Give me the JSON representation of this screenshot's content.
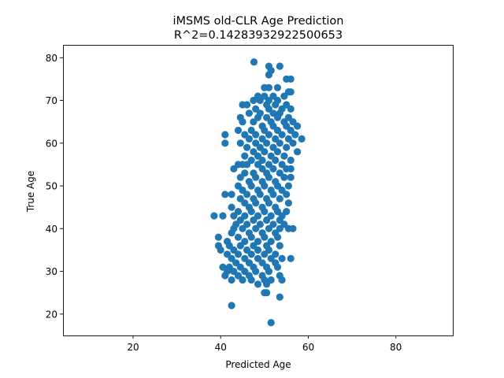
{
  "chart_data": {
    "type": "scatter",
    "title": "iMSMS old-CLR Age Prediction",
    "subtitle": "R^2=0.14283932922500653",
    "xlabel": "Predicted Age",
    "ylabel": "True Age",
    "xlim": [
      4,
      93
    ],
    "ylim": [
      15,
      83
    ],
    "xticks": [
      20,
      40,
      60,
      80
    ],
    "yticks": [
      20,
      30,
      40,
      50,
      60,
      70,
      80
    ],
    "grid": false,
    "marker_color": "#1f77b4",
    "points": [
      [
        47.6,
        79.0
      ],
      [
        51.0,
        78.0
      ],
      [
        53.5,
        78.0
      ],
      [
        51.5,
        77.0
      ],
      [
        51.0,
        76.0
      ],
      [
        55.0,
        75.0
      ],
      [
        56.0,
        75.0
      ],
      [
        50.0,
        73.0
      ],
      [
        51.0,
        73.0
      ],
      [
        53.0,
        73.0
      ],
      [
        55.5,
        72.0
      ],
      [
        56.0,
        72.0
      ],
      [
        48.5,
        71.0
      ],
      [
        50.0,
        71.0
      ],
      [
        52.0,
        71.0
      ],
      [
        54.5,
        71.0
      ],
      [
        49.0,
        70.0
      ],
      [
        51.0,
        70.0
      ],
      [
        53.0,
        70.0
      ],
      [
        47.5,
        70.0
      ],
      [
        45.0,
        69.0
      ],
      [
        46.0,
        69.0
      ],
      [
        50.5,
        69.0
      ],
      [
        52.5,
        69.0
      ],
      [
        55.0,
        69.0
      ],
      [
        48.0,
        68.0
      ],
      [
        51.0,
        68.0
      ],
      [
        54.0,
        68.0
      ],
      [
        56.0,
        68.0
      ],
      [
        49.0,
        67.0
      ],
      [
        52.0,
        67.0
      ],
      [
        53.5,
        67.0
      ],
      [
        46.5,
        67.0
      ],
      [
        55.5,
        66.0
      ],
      [
        44.5,
        66.0
      ],
      [
        48.5,
        66.0
      ],
      [
        50.5,
        66.0
      ],
      [
        53.0,
        66.0
      ],
      [
        45.0,
        65.0
      ],
      [
        47.5,
        65.0
      ],
      [
        51.5,
        65.0
      ],
      [
        54.5,
        65.0
      ],
      [
        56.5,
        65.0
      ],
      [
        49.5,
        64.0
      ],
      [
        52.0,
        64.0
      ],
      [
        55.0,
        64.0
      ],
      [
        57.5,
        64.0
      ],
      [
        44.0,
        63.0
      ],
      [
        47.0,
        63.0
      ],
      [
        50.0,
        63.0
      ],
      [
        53.0,
        63.0
      ],
      [
        56.0,
        63.0
      ],
      [
        45.5,
        62.0
      ],
      [
        48.0,
        62.0
      ],
      [
        51.0,
        62.0
      ],
      [
        54.0,
        62.0
      ],
      [
        41.0,
        62.0
      ],
      [
        57.0,
        62.0
      ],
      [
        46.5,
        61.0
      ],
      [
        49.5,
        61.0
      ],
      [
        52.5,
        61.0
      ],
      [
        55.5,
        61.0
      ],
      [
        58.5,
        61.0
      ],
      [
        41.0,
        60.0
      ],
      [
        44.5,
        60.0
      ],
      [
        48.0,
        60.0
      ],
      [
        50.5,
        60.0
      ],
      [
        53.5,
        60.0
      ],
      [
        56.5,
        60.0
      ],
      [
        46.0,
        59.0
      ],
      [
        49.0,
        59.0
      ],
      [
        52.0,
        59.0
      ],
      [
        55.0,
        59.0
      ],
      [
        47.5,
        58.0
      ],
      [
        50.0,
        58.0
      ],
      [
        53.0,
        58.0
      ],
      [
        57.5,
        58.0
      ],
      [
        45.5,
        57.0
      ],
      [
        48.5,
        57.0
      ],
      [
        51.5,
        57.0
      ],
      [
        54.5,
        57.0
      ],
      [
        47.0,
        56.0
      ],
      [
        49.5,
        56.0
      ],
      [
        52.5,
        56.0
      ],
      [
        56.0,
        56.0
      ],
      [
        46.0,
        55.0
      ],
      [
        48.5,
        55.0
      ],
      [
        51.0,
        55.0
      ],
      [
        54.0,
        55.0
      ],
      [
        44.0,
        55.0
      ],
      [
        45.0,
        55.0
      ],
      [
        49.5,
        54.0
      ],
      [
        52.0,
        54.0
      ],
      [
        55.0,
        54.0
      ],
      [
        56.0,
        54.0
      ],
      [
        43.0,
        54.0
      ],
      [
        47.5,
        53.0
      ],
      [
        50.5,
        53.0
      ],
      [
        53.5,
        53.0
      ],
      [
        45.5,
        53.0
      ],
      [
        44.5,
        52.0
      ],
      [
        48.0,
        52.0
      ],
      [
        51.0,
        52.0
      ],
      [
        54.5,
        52.0
      ],
      [
        56.0,
        52.0
      ],
      [
        46.5,
        51.0
      ],
      [
        49.5,
        51.0
      ],
      [
        52.5,
        51.0
      ],
      [
        44.0,
        50.0
      ],
      [
        47.0,
        50.0
      ],
      [
        50.0,
        50.0
      ],
      [
        53.0,
        50.0
      ],
      [
        55.5,
        50.0
      ],
      [
        45.0,
        49.0
      ],
      [
        48.5,
        49.0
      ],
      [
        51.5,
        49.0
      ],
      [
        54.0,
        49.0
      ],
      [
        41.0,
        48.0
      ],
      [
        42.5,
        48.0
      ],
      [
        46.0,
        48.0
      ],
      [
        49.0,
        48.0
      ],
      [
        52.0,
        48.0
      ],
      [
        55.0,
        48.0
      ],
      [
        44.5,
        47.0
      ],
      [
        47.5,
        47.0
      ],
      [
        50.5,
        47.0
      ],
      [
        53.5,
        47.0
      ],
      [
        45.5,
        46.0
      ],
      [
        48.0,
        46.0
      ],
      [
        51.0,
        46.0
      ],
      [
        55.5,
        46.0
      ],
      [
        42.5,
        45.0
      ],
      [
        46.5,
        45.0
      ],
      [
        49.5,
        45.0
      ],
      [
        52.5,
        45.0
      ],
      [
        44.0,
        44.0
      ],
      [
        47.0,
        44.0
      ],
      [
        50.0,
        44.0
      ],
      [
        53.0,
        44.0
      ],
      [
        55.0,
        44.0
      ],
      [
        38.5,
        43.0
      ],
      [
        40.5,
        43.0
      ],
      [
        43.0,
        43.0
      ],
      [
        45.5,
        43.0
      ],
      [
        48.5,
        43.0
      ],
      [
        51.5,
        43.0
      ],
      [
        54.0,
        43.0
      ],
      [
        44.5,
        42.0
      ],
      [
        47.5,
        42.0
      ],
      [
        50.5,
        42.0
      ],
      [
        53.5,
        42.0
      ],
      [
        43.5,
        41.0
      ],
      [
        46.0,
        41.0
      ],
      [
        49.0,
        41.0
      ],
      [
        52.0,
        41.0
      ],
      [
        54.5,
        41.0
      ],
      [
        43.0,
        40.0
      ],
      [
        45.0,
        40.0
      ],
      [
        48.0,
        40.0
      ],
      [
        51.0,
        40.0
      ],
      [
        53.5,
        40.0
      ],
      [
        55.5,
        40.0
      ],
      [
        56.5,
        40.0
      ],
      [
        42.5,
        39.0
      ],
      [
        46.5,
        39.0
      ],
      [
        49.5,
        39.0
      ],
      [
        52.5,
        39.0
      ],
      [
        39.5,
        38.0
      ],
      [
        44.0,
        38.0
      ],
      [
        47.0,
        38.0
      ],
      [
        50.0,
        38.0
      ],
      [
        53.0,
        38.0
      ],
      [
        41.5,
        37.0
      ],
      [
        45.5,
        37.0
      ],
      [
        48.5,
        37.0
      ],
      [
        51.5,
        37.0
      ],
      [
        42.0,
        36.0
      ],
      [
        44.5,
        36.0
      ],
      [
        47.5,
        36.0
      ],
      [
        50.5,
        36.0
      ],
      [
        53.5,
        36.0
      ],
      [
        39.5,
        36.0
      ],
      [
        40.0,
        35.0
      ],
      [
        43.0,
        35.0
      ],
      [
        46.0,
        35.0
      ],
      [
        48.5,
        35.0
      ],
      [
        51.0,
        35.0
      ],
      [
        44.0,
        34.0
      ],
      [
        47.0,
        34.0
      ],
      [
        50.0,
        34.0
      ],
      [
        52.5,
        34.0
      ],
      [
        41.5,
        34.0
      ],
      [
        42.5,
        33.0
      ],
      [
        45.5,
        33.0
      ],
      [
        48.5,
        33.0
      ],
      [
        51.5,
        33.0
      ],
      [
        54.0,
        33.0
      ],
      [
        56.0,
        33.0
      ],
      [
        43.5,
        32.0
      ],
      [
        46.5,
        32.0
      ],
      [
        49.5,
        32.0
      ],
      [
        52.5,
        32.0
      ],
      [
        40.5,
        31.0
      ],
      [
        42.0,
        31.0
      ],
      [
        44.5,
        31.0
      ],
      [
        47.5,
        31.0
      ],
      [
        50.5,
        31.0
      ],
      [
        53.0,
        31.0
      ],
      [
        41.5,
        30.0
      ],
      [
        43.0,
        30.0
      ],
      [
        45.5,
        30.0
      ],
      [
        48.0,
        30.0
      ],
      [
        51.0,
        30.0
      ],
      [
        41.0,
        29.0
      ],
      [
        44.0,
        29.0
      ],
      [
        46.5,
        29.0
      ],
      [
        49.5,
        29.0
      ],
      [
        53.5,
        29.0
      ],
      [
        42.5,
        28.0
      ],
      [
        47.0,
        28.0
      ],
      [
        50.0,
        28.0
      ],
      [
        51.5,
        28.0
      ],
      [
        54.0,
        28.0
      ],
      [
        45.0,
        28.0
      ],
      [
        48.5,
        27.0
      ],
      [
        50.5,
        27.0
      ],
      [
        50.0,
        25.0
      ],
      [
        50.5,
        25.0
      ],
      [
        53.5,
        24.0
      ],
      [
        42.5,
        22.0
      ],
      [
        51.5,
        18.0
      ]
    ]
  }
}
